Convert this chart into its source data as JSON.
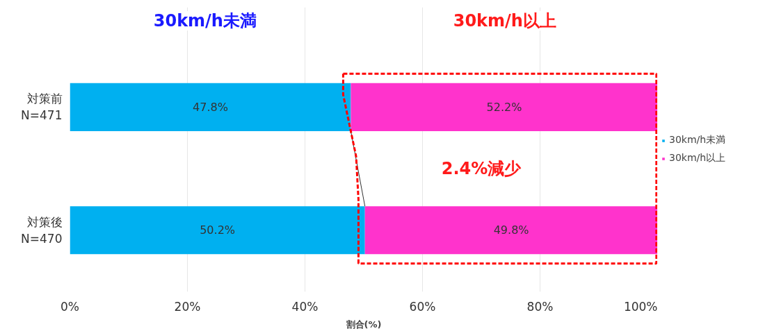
{
  "chart_data": {
    "type": "bar",
    "orientation": "horizontal",
    "stacked": true,
    "categories": [
      "対策前\nN=471",
      "対策後\nN=470"
    ],
    "series": [
      {
        "name": "30km/h未満",
        "color": "#00b0f0",
        "values": [
          47.8,
          50.2
        ],
        "value_labels": [
          "47.8%",
          "50.2%"
        ]
      },
      {
        "name": "30km/h以上",
        "color": "#ff33cc",
        "values": [
          52.2,
          49.8
        ],
        "value_labels": [
          "52.2%",
          "49.8%"
        ]
      }
    ],
    "xlim": [
      0,
      100
    ],
    "xticks": [
      {
        "value": 0,
        "label": "0%"
      },
      {
        "value": 20,
        "label": "20%"
      },
      {
        "value": 40,
        "label": "40%"
      },
      {
        "value": 60,
        "label": "60%"
      },
      {
        "value": 80,
        "label": "80%"
      },
      {
        "value": 100,
        "label": "100%"
      }
    ],
    "xlabel": "割合(%)",
    "annotations": [
      "30km/h未満",
      "30km/h以上",
      "2.4%減少"
    ],
    "grid": "x",
    "legend": "right"
  }
}
